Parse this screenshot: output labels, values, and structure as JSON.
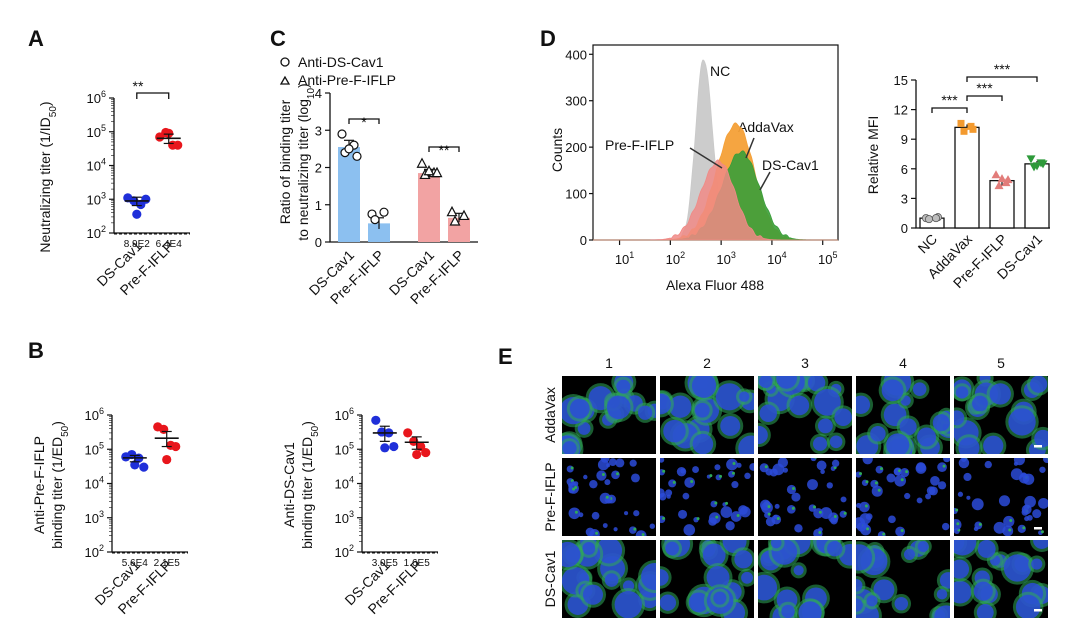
{
  "colors": {
    "blue": "#1f2fd9",
    "red": "#e8161c",
    "cbar_blue": "#8cc0f0",
    "cbar_red": "#f2a3a3",
    "hist_nc": "#c9c9c9",
    "hist_adda": "#f4a037",
    "hist_dscav1": "#3a9e3a",
    "hist_pref": "#f08a86",
    "cell_green": "#2faa5a",
    "cell_blue": "#2b4bd8",
    "mfi_adda": "#f39a2f",
    "mfi_pref": "#e27c7a",
    "mfi_ds": "#2e9a3a",
    "mfi_nc": "#bdbdbd"
  },
  "panels": {
    "A": {
      "label": "A",
      "ylabel": "Neutralizing titer (1/ID",
      "ylabel_sub": "50",
      "ylabel_tail": ")",
      "y_ticks": [
        {
          "base": "10",
          "exp": "2",
          "v": 2
        },
        {
          "base": "10",
          "exp": "3",
          "v": 3
        },
        {
          "base": "10",
          "exp": "4",
          "v": 4
        },
        {
          "base": "10",
          "exp": "5",
          "v": 5
        },
        {
          "base": "10",
          "exp": "6",
          "v": 6
        }
      ],
      "significance": "**",
      "chart_data": {
        "type": "scatter",
        "y_scale": "log10",
        "ylim": [
          100,
          1000000
        ],
        "categories": [
          "DS-Cav1",
          "Pre-F-IFLP"
        ],
        "series": [
          {
            "name": "DS-Cav1",
            "values": [
              1100,
              900,
              700,
              1000,
              360
            ],
            "mean": 890,
            "sem_low": 650,
            "sem_high": 1150,
            "label": "8.9E2"
          },
          {
            "name": "Pre-F-IFLP",
            "values": [
              70000,
              95000,
              40000,
              40000,
              90000
            ],
            "mean": 64000,
            "sem_low": 45000,
            "sem_high": 85000,
            "label": "6.4E4"
          }
        ],
        "detection_limit": 100
      }
    },
    "B1": {
      "label": "B",
      "ylabel_line1": "Anti-Pre-F-IFLP",
      "ylabel_line2": "binding titer (1/ED",
      "ylabel_sub": "50",
      "ylabel_tail": ")",
      "chart_data": {
        "type": "scatter",
        "y_scale": "log10",
        "ylim": [
          100,
          1000000
        ],
        "categories": [
          "DS-Cav1",
          "Pre-F-IFLP"
        ],
        "series": [
          {
            "name": "DS-Cav1",
            "values": [
              60000,
              70000,
              55000,
              30000,
              35000
            ],
            "mean": 56000,
            "sem_low": 43000,
            "sem_high": 66000,
            "label": "5.6E4"
          },
          {
            "name": "Pre-F-IFLP",
            "values": [
              450000,
              380000,
              130000,
              120000,
              50000
            ],
            "mean": 210000,
            "sem_low": 120000,
            "sem_high": 330000,
            "label": "2.1E5"
          }
        ],
        "detection_limit": 100
      }
    },
    "B2": {
      "ylabel_line1": "Anti-DS-Cav1",
      "ylabel_line2": "binding titer (1/ED",
      "ylabel_sub": "50",
      "ylabel_tail": ")",
      "chart_data": {
        "type": "scatter",
        "y_scale": "log10",
        "ylim": [
          100,
          1000000
        ],
        "categories": [
          "DS-Cav1",
          "Pre-F-IFLP"
        ],
        "series": [
          {
            "name": "DS-Cav1",
            "values": [
              700000,
              320000,
              300000,
              120000,
              110000
            ],
            "mean": 300000,
            "sem_low": 170000,
            "sem_high": 470000,
            "label": "3.0E5"
          },
          {
            "name": "Pre-F-IFLP",
            "values": [
              300000,
              170000,
              120000,
              80000,
              70000
            ],
            "mean": 160000,
            "sem_low": 100000,
            "sem_high": 230000,
            "label": "1.6E5"
          }
        ],
        "detection_limit": 100
      }
    },
    "C": {
      "label": "C",
      "ylabel_line1": "Ratio of binding titer",
      "ylabel_line2": "to neutralizing titer (log",
      "ylabel_sub": "10",
      "ylabel_tail": ")",
      "legend": [
        {
          "marker": "circle",
          "label": "Anti-DS-Cav1"
        },
        {
          "marker": "triangle",
          "label": "Anti-Pre-F-IFLP"
        }
      ],
      "significance": [
        "*",
        "**"
      ],
      "chart_data": {
        "type": "bar",
        "ylim": [
          0,
          4
        ],
        "y_ticks": [
          0,
          1,
          2,
          3,
          4
        ],
        "groups": [
          "Anti-DS-Cav1",
          "Anti-Pre-F-IFLP"
        ],
        "categories": [
          "DS-Cav1",
          "Pre-F-IFLP",
          "DS-Cav1",
          "Pre-F-IFLP"
        ],
        "values": [
          2.55,
          0.5,
          1.85,
          0.65
        ],
        "sem": [
          0.18,
          0.15,
          0.1,
          0.12
        ],
        "points": [
          [
            2.9,
            2.6,
            2.4,
            2.3,
            2.5
          ],
          [
            0.75,
            0.8,
            0.6
          ],
          [
            2.1,
            1.85,
            1.8,
            1.85,
            1.9
          ],
          [
            0.8,
            0.7,
            0.55
          ]
        ]
      }
    },
    "D1": {
      "label": "D",
      "ylabel": "Counts",
      "xlabel": "Alexa Fluor 488",
      "x_ticks": [
        {
          "base": "10",
          "exp": "1",
          "v": 1
        },
        {
          "base": "10",
          "exp": "2",
          "v": 2
        },
        {
          "base": "10",
          "exp": "3",
          "v": 3
        },
        {
          "base": "10",
          "exp": "4",
          "v": 4
        },
        {
          "base": "10",
          "exp": "5",
          "v": 5
        }
      ],
      "annotations": [
        "NC",
        "AddaVax",
        "Pre-F-IFLP",
        "DS-Cav1"
      ],
      "chart_data": {
        "type": "area",
        "x_scale": "log10",
        "xlim": [
          3,
          200000
        ],
        "ylim": [
          0,
          420
        ],
        "y_ticks": [
          0,
          100,
          200,
          300,
          400
        ],
        "series": [
          {
            "name": "NC",
            "peak_x": 450,
            "peak_y": 390
          },
          {
            "name": "AddaVax",
            "peak_x": 2000,
            "peak_y": 250
          },
          {
            "name": "DS-Cav1",
            "peak_x": 2500,
            "peak_y": 190
          },
          {
            "name": "Pre-F-IFLP",
            "peak_x": 900,
            "peak_y": 170
          }
        ]
      }
    },
    "D2": {
      "ylabel": "Relative MFI",
      "significance": [
        "***",
        "***",
        "***"
      ],
      "chart_data": {
        "type": "bar",
        "ylim": [
          0,
          15
        ],
        "y_ticks": [
          0,
          3,
          6,
          9,
          12,
          15
        ],
        "categories": [
          "NC",
          "AddaVax",
          "Pre-F-IFLP",
          "DS-Cav1"
        ],
        "values": [
          1.0,
          10.2,
          4.8,
          6.5
        ],
        "sem": [
          0.1,
          0.3,
          0.5,
          0.3
        ],
        "points": [
          [
            1.0,
            1.1,
            0.9,
            1.0
          ],
          [
            10.6,
            10.0,
            9.8,
            10.3
          ],
          [
            5.4,
            4.9,
            4.3,
            4.6,
            5.0
          ],
          [
            7.0,
            6.5,
            6.2,
            6.6,
            6.3
          ]
        ]
      }
    },
    "E": {
      "label": "E",
      "columns": [
        "1",
        "2",
        "3",
        "4",
        "5"
      ],
      "rows": [
        "AddaVax",
        "Pre-F-IFLP",
        "DS-Cav1"
      ]
    }
  }
}
